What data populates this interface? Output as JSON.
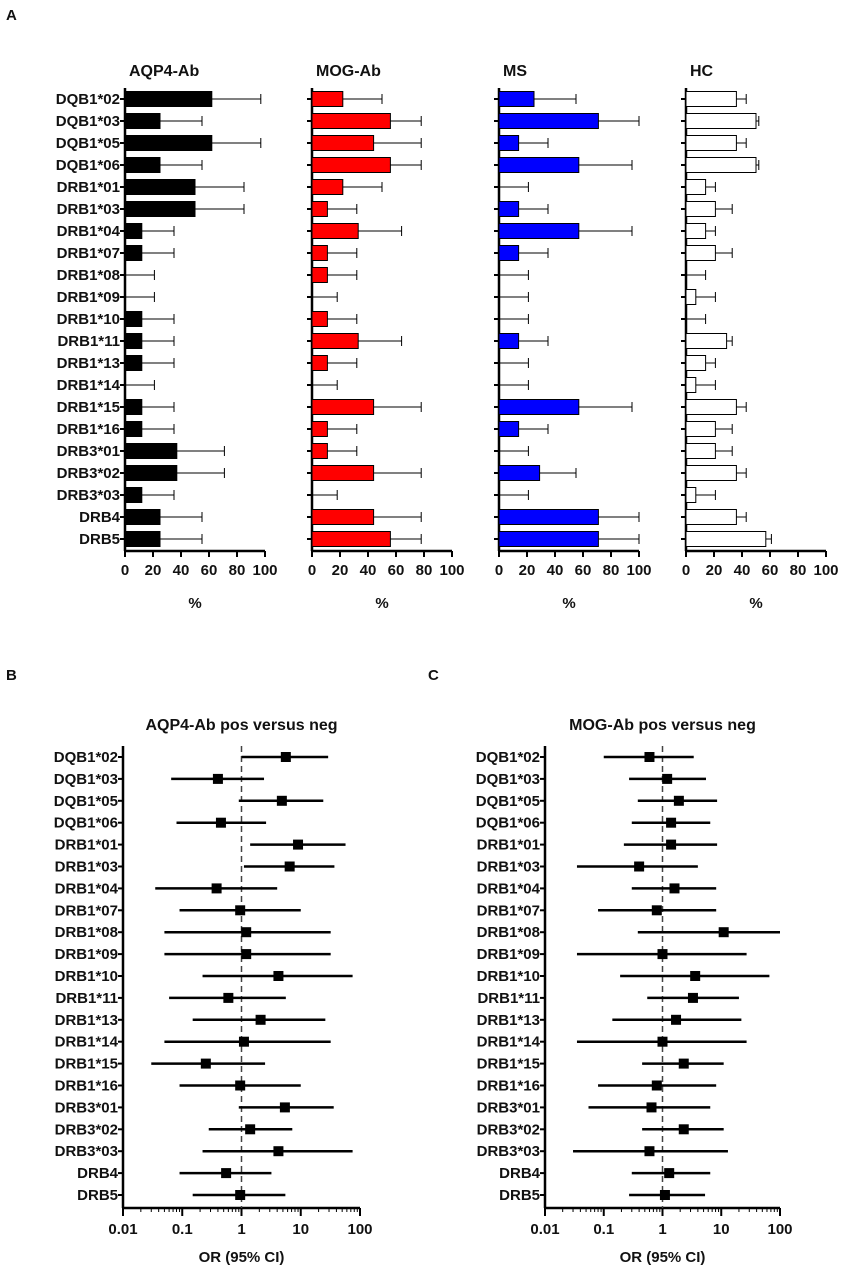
{
  "panel_labels": {
    "a": "A",
    "b": "B",
    "c": "C"
  },
  "chart_data": [
    {
      "type": "bar",
      "orientation": "horizontal",
      "title": "AQP4-Ab",
      "xlabel": "%",
      "xlim": [
        0,
        100
      ],
      "xticks": [
        "0",
        "20",
        "40",
        "60",
        "80",
        "100"
      ],
      "color": "#000000",
      "categories": [
        "DQB1*02",
        "DQB1*03",
        "DQB1*05",
        "DQB1*06",
        "DRB1*01",
        "DRB1*03",
        "DRB1*04",
        "DRB1*07",
        "DRB1*08",
        "DRB1*09",
        "DRB1*10",
        "DRB1*11",
        "DRB1*13",
        "DRB1*14",
        "DRB1*15",
        "DRB1*16",
        "DRB3*01",
        "DRB3*02",
        "DRB3*03",
        "DRB4",
        "DRB5"
      ],
      "values": [
        62,
        25,
        62,
        25,
        50,
        50,
        12,
        12,
        0,
        0,
        12,
        12,
        12,
        0,
        12,
        12,
        37,
        37,
        12,
        25,
        25
      ],
      "err_upper": [
        97,
        55,
        97,
        55,
        85,
        85,
        35,
        35,
        21,
        21,
        35,
        35,
        35,
        21,
        35,
        35,
        71,
        71,
        35,
        55,
        55
      ]
    },
    {
      "type": "bar",
      "orientation": "horizontal",
      "title": "MOG-Ab",
      "xlabel": "%",
      "xlim": [
        0,
        100
      ],
      "xticks": [
        "0",
        "20",
        "40",
        "60",
        "80",
        "100"
      ],
      "color": "#ff0000",
      "categories": [
        "DQB1*02",
        "DQB1*03",
        "DQB1*05",
        "DQB1*06",
        "DRB1*01",
        "DRB1*03",
        "DRB1*04",
        "DRB1*07",
        "DRB1*08",
        "DRB1*09",
        "DRB1*10",
        "DRB1*11",
        "DRB1*13",
        "DRB1*14",
        "DRB1*15",
        "DRB1*16",
        "DRB3*01",
        "DRB3*02",
        "DRB3*03",
        "DRB4",
        "DRB5"
      ],
      "values": [
        22,
        56,
        44,
        56,
        22,
        11,
        33,
        11,
        11,
        0,
        11,
        33,
        11,
        0,
        44,
        11,
        11,
        44,
        0,
        44,
        56
      ],
      "err_upper": [
        50,
        78,
        78,
        78,
        50,
        32,
        64,
        32,
        32,
        18,
        32,
        64,
        32,
        18,
        78,
        32,
        32,
        78,
        18,
        78,
        78
      ]
    },
    {
      "type": "bar",
      "orientation": "horizontal",
      "title": "MS",
      "xlabel": "%",
      "xlim": [
        0,
        100
      ],
      "xticks": [
        "0",
        "20",
        "40",
        "60",
        "80",
        "100"
      ],
      "color": "#0000ff",
      "categories": [
        "DQB1*02",
        "DQB1*03",
        "DQB1*05",
        "DQB1*06",
        "DRB1*01",
        "DRB1*03",
        "DRB1*04",
        "DRB1*07",
        "DRB1*08",
        "DRB1*09",
        "DRB1*10",
        "DRB1*11",
        "DRB1*13",
        "DRB1*14",
        "DRB1*15",
        "DRB1*16",
        "DRB3*01",
        "DRB3*02",
        "DRB3*03",
        "DRB4",
        "DRB5"
      ],
      "values": [
        25,
        71,
        14,
        57,
        0,
        14,
        57,
        14,
        0,
        0,
        0,
        14,
        0,
        0,
        57,
        14,
        0,
        29,
        0,
        71,
        71
      ],
      "err_upper": [
        55,
        100,
        35,
        95,
        21,
        35,
        95,
        35,
        21,
        21,
        21,
        35,
        21,
        21,
        95,
        35,
        21,
        55,
        21,
        100,
        100
      ]
    },
    {
      "type": "bar",
      "orientation": "horizontal",
      "title": "HC",
      "xlabel": "%",
      "xlim": [
        0,
        100
      ],
      "xticks": [
        "0",
        "20",
        "40",
        "60",
        "80",
        "100"
      ],
      "color": "#ffffff",
      "categories": [
        "DQB1*02",
        "DQB1*03",
        "DQB1*05",
        "DQB1*06",
        "DRB1*01",
        "DRB1*03",
        "DRB1*04",
        "DRB1*07",
        "DRB1*08",
        "DRB1*09",
        "DRB1*10",
        "DRB1*11",
        "DRB1*13",
        "DRB1*14",
        "DRB1*15",
        "DRB1*16",
        "DRB3*01",
        "DRB3*02",
        "DRB3*03",
        "DRB4",
        "DRB5"
      ],
      "values": [
        36,
        50,
        36,
        50,
        14,
        21,
        14,
        21,
        0,
        7,
        0,
        29,
        14,
        7,
        36,
        21,
        21,
        36,
        7,
        36,
        57
      ],
      "err_upper": [
        43,
        52,
        43,
        52,
        21,
        33,
        21,
        33,
        14,
        21,
        14,
        33,
        21,
        21,
        43,
        33,
        33,
        43,
        21,
        43,
        61
      ]
    },
    {
      "type": "forest",
      "title": "AQP4-Ab pos versus neg",
      "xlabel": "OR (95% CI)",
      "xscale": "log",
      "xlim": [
        0.01,
        100
      ],
      "xticks": [
        "0.01",
        "0.1",
        "1",
        "10",
        "100"
      ],
      "reference": 1,
      "categories": [
        "DQB1*02",
        "DQB1*03",
        "DQB1*05",
        "DQB1*06",
        "DRB1*01",
        "DRB1*03",
        "DRB1*04",
        "DRB1*07",
        "DRB1*08",
        "DRB1*09",
        "DRB1*10",
        "DRB1*11",
        "DRB1*13",
        "DRB1*14",
        "DRB1*15",
        "DRB1*16",
        "DRB3*01",
        "DRB3*02",
        "DRB3*03",
        "DRB4",
        "DRB5"
      ],
      "or": [
        5.6,
        0.4,
        4.8,
        0.45,
        9,
        6.5,
        0.38,
        0.95,
        1.2,
        1.2,
        4.2,
        0.6,
        2.1,
        1.1,
        0.25,
        0.95,
        5.4,
        1.4,
        4.2,
        0.55,
        0.95
      ],
      "lo": [
        1.0,
        0.065,
        0.9,
        0.08,
        1.4,
        1.1,
        0.035,
        0.09,
        0.05,
        0.05,
        0.22,
        0.06,
        0.15,
        0.05,
        0.03,
        0.09,
        0.9,
        0.28,
        0.22,
        0.09,
        0.15
      ],
      "hi": [
        29,
        2.4,
        24,
        2.6,
        57,
        37,
        4.0,
        10,
        32,
        32,
        75,
        5.6,
        26,
        32,
        2.5,
        10,
        36,
        7.2,
        75,
        3.2,
        5.5
      ]
    },
    {
      "type": "forest",
      "title": "MOG-Ab pos versus neg",
      "xlabel": "OR (95% CI)",
      "xscale": "log",
      "xlim": [
        0.01,
        100
      ],
      "xticks": [
        "0.01",
        "0.1",
        "1",
        "10",
        "100"
      ],
      "reference": 1,
      "categories": [
        "DQB1*02",
        "DQB1*03",
        "DQB1*05",
        "DQB1*06",
        "DRB1*01",
        "DRB1*03",
        "DRB1*04",
        "DRB1*07",
        "DRB1*08",
        "DRB1*09",
        "DRB1*10",
        "DRB1*11",
        "DRB1*13",
        "DRB1*14",
        "DRB1*15",
        "DRB1*16",
        "DRB3*01",
        "DRB3*02",
        "DRB3*03",
        "DRB4",
        "DRB5"
      ],
      "or": [
        0.6,
        1.2,
        1.9,
        1.4,
        1.4,
        0.4,
        1.6,
        0.8,
        11,
        1.0,
        3.6,
        3.3,
        1.7,
        1.0,
        2.3,
        0.8,
        0.65,
        2.3,
        0.6,
        1.3,
        1.1
      ],
      "lo": [
        0.1,
        0.27,
        0.38,
        0.3,
        0.22,
        0.035,
        0.3,
        0.08,
        0.38,
        0.035,
        0.19,
        0.55,
        0.14,
        0.035,
        0.45,
        0.08,
        0.055,
        0.45,
        0.03,
        0.3,
        0.27
      ],
      "hi": [
        3.4,
        5.5,
        8.5,
        6.5,
        8.5,
        4.0,
        8.2,
        8.2,
        100,
        27,
        66,
        20,
        22,
        27,
        11,
        8.2,
        6.5,
        11,
        13,
        6.5,
        5.3
      ]
    }
  ]
}
